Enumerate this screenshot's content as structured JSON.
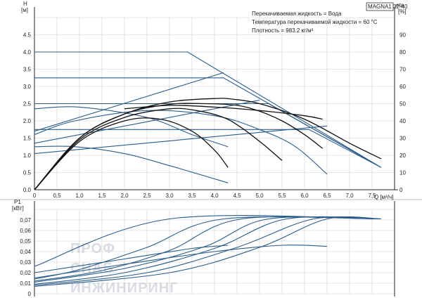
{
  "model": "MAGNA1 32-40",
  "info_lines": [
    "Перекачиваемая жидкость = Вода",
    "Температура перекачиваемой жидкости = 60 °C",
    "Плотность = 983.2 кг/м³"
  ],
  "watermark": [
    "ПРОФ",
    "СНАБ",
    "ИНЖИНИРИНГ"
  ],
  "colors": {
    "blue": "#2b5c8a",
    "black": "#111111",
    "grid": "#d0d0d0"
  },
  "chart_data": [
    {
      "type": "line",
      "name": "head",
      "ylabel": "H",
      "yunit": "[м]",
      "y2label": "eta",
      "y2unit": "[%]",
      "xlabel": "Q [м³/ч]",
      "xlim": [
        0,
        8
      ],
      "ylim": [
        0,
        5
      ],
      "y2lim": [
        0,
        100
      ],
      "xticks": [
        "0",
        "0,5",
        "1,0",
        "1,5",
        "2,0",
        "2,5",
        "3,0",
        "3,5",
        "4,0",
        "4,5",
        "5,0",
        "5,5",
        "6,0",
        "6,5",
        "7,0",
        "7,5"
      ],
      "yticks": [
        "0.0",
        "0.5",
        "1.0",
        "1.5",
        "2.0",
        "2.5",
        "3.0",
        "3.5",
        "4.0",
        "4.5"
      ],
      "y2ticks": [
        "0",
        "10",
        "20",
        "30",
        "40",
        "50",
        "60",
        "70",
        "80",
        "90"
      ],
      "grid": true,
      "series": [
        {
          "kind": "blue",
          "x": [
            0,
            3.4,
            7.7
          ],
          "y": [
            4.0,
            4.0,
            0.65
          ]
        },
        {
          "kind": "blue",
          "x": [
            0,
            4.2,
            7.7
          ],
          "y": [
            3.25,
            3.25,
            0.65
          ]
        },
        {
          "kind": "blue",
          "x": [
            0,
            5.2,
            7.7
          ],
          "y": [
            2.5,
            2.5,
            0.65
          ]
        },
        {
          "kind": "blue",
          "x": [
            0,
            6.1,
            7.7
          ],
          "y": [
            1.75,
            1.75,
            0.65
          ]
        },
        {
          "kind": "blue",
          "x": [
            0,
            4.2
          ],
          "y": [
            1.7,
            3.4
          ]
        },
        {
          "kind": "blue",
          "x": [
            0,
            5.0
          ],
          "y": [
            1.35,
            2.6
          ]
        },
        {
          "kind": "blue",
          "x": [
            0,
            6.5
          ],
          "y": [
            1.05,
            1.85
          ]
        },
        {
          "kind": "blue",
          "x": [
            0,
            0.9,
            2.5,
            4.0,
            5.0,
            5.8,
            6.5
          ],
          "y": [
            1.6,
            2.0,
            2.3,
            2.15,
            1.75,
            1.25,
            0.45
          ]
        },
        {
          "kind": "blue",
          "x": [
            0,
            0.9,
            2.0,
            3.0,
            4.3
          ],
          "y": [
            1.25,
            1.25,
            1.05,
            0.7,
            0.2
          ]
        },
        {
          "kind": "blue",
          "x": [
            0,
            1.0,
            2.5,
            3.5,
            4.3
          ],
          "y": [
            2.35,
            2.4,
            2.1,
            1.6,
            1.25
          ]
        },
        {
          "kind": "black",
          "x": [
            0,
            1.0,
            2.0,
            3.0,
            4.0,
            4.4,
            5.0,
            6.0,
            7.0,
            7.7
          ],
          "y": [
            0,
            1.5,
            2.2,
            2.55,
            2.65,
            2.63,
            2.5,
            2.05,
            1.35,
            0.9
          ]
        },
        {
          "kind": "black",
          "x": [
            0,
            1.0,
            2.0,
            3.0,
            3.8,
            4.5,
            5.0,
            5.5,
            6.0,
            6.4
          ],
          "y": [
            0,
            1.5,
            2.2,
            2.48,
            2.5,
            2.45,
            2.28,
            2.0,
            1.6,
            1.2
          ]
        },
        {
          "kind": "black",
          "x": [
            0,
            1.0,
            2.0,
            3.0,
            3.6,
            4.2,
            4.6,
            5.1,
            5.5
          ],
          "y": [
            0,
            1.45,
            2.1,
            2.35,
            2.3,
            2.1,
            1.8,
            1.3,
            0.85
          ]
        },
        {
          "kind": "black",
          "x": [
            0,
            1.0,
            2.0,
            2.8,
            3.5,
            4.0,
            4.3
          ],
          "y": [
            0,
            1.4,
            2.0,
            2.05,
            1.7,
            1.15,
            0.65
          ]
        },
        {
          "kind": "black",
          "x": [
            2.0,
            3.0,
            4.0,
            5.0,
            6.0,
            6.4
          ],
          "y": [
            2.35,
            2.45,
            2.4,
            2.3,
            2.15,
            2.05
          ]
        }
      ]
    },
    {
      "type": "line",
      "name": "power",
      "ylabel": "P1",
      "yunit": "[кВт]",
      "xlim": [
        0,
        8
      ],
      "ylim": [
        0,
        0.08
      ],
      "yticks": [
        "0",
        "0,01",
        "0,02",
        "0,03",
        "0,04",
        "0,05",
        "0,06",
        "0,07"
      ],
      "grid": true,
      "series": [
        {
          "x": [
            0,
            3.0,
            7.7
          ],
          "y": [
            0.026,
            0.071,
            0.071
          ]
        },
        {
          "x": [
            0,
            1.0,
            2.5,
            4.2,
            7.7
          ],
          "y": [
            0.014,
            0.023,
            0.044,
            0.071,
            0.071
          ]
        },
        {
          "x": [
            0,
            1.5,
            3.0,
            4.6,
            7.7
          ],
          "y": [
            0.012,
            0.022,
            0.041,
            0.071,
            0.071
          ]
        },
        {
          "x": [
            0,
            2.0,
            3.8,
            5.2,
            7.7
          ],
          "y": [
            0.011,
            0.024,
            0.045,
            0.071,
            0.071
          ]
        },
        {
          "x": [
            0,
            2.0,
            4.0,
            5.6,
            7.7
          ],
          "y": [
            0.009,
            0.02,
            0.043,
            0.071,
            0.071
          ]
        },
        {
          "x": [
            0,
            2.5,
            4.5,
            6.2,
            7.7
          ],
          "y": [
            0.008,
            0.02,
            0.044,
            0.071,
            0.071
          ]
        },
        {
          "x": [
            0,
            3.0,
            5.0,
            6.5,
            7.7
          ],
          "y": [
            0.007,
            0.02,
            0.044,
            0.071,
            0.071
          ]
        },
        {
          "x": [
            0,
            2.0,
            4.0,
            5.5,
            6.5
          ],
          "y": [
            0.015,
            0.028,
            0.04,
            0.046,
            0.045
          ]
        },
        {
          "x": [
            0,
            2.0,
            3.5,
            4.3
          ],
          "y": [
            0.02,
            0.033,
            0.043,
            0.046
          ]
        }
      ]
    }
  ]
}
